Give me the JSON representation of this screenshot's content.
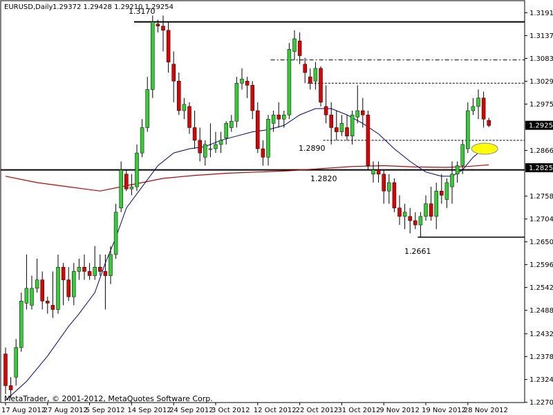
{
  "chart_data": {
    "type": "candlestick",
    "symbol_header": "EURUSD,Daily",
    "ohlc_header": "1.29372  1.29428  1.29210  1.29254",
    "footer": "MetaTrader, © 2001-2012, MetaQuotes Software Corp.",
    "ylim": [
      1.227,
      1.322
    ],
    "y_ticks": [
      "1.31915",
      "1.31375",
      "1.30835",
      "1.30295",
      "1.29755",
      "1.29254",
      "1.28660",
      "1.28251",
      "1.27580",
      "1.27040",
      "1.26500",
      "1.25960",
      "1.25420",
      "1.24880",
      "1.24325",
      "1.23785",
      "1.23245",
      "1.22705"
    ],
    "x_ticks": [
      "17 Aug 2012",
      "27 Aug 2012",
      "5 Sep 2012",
      "14 Sep 2012",
      "24 Sep 2012",
      "3 Oct 2012",
      "12 Oct 2012",
      "22 Oct 2012",
      "31 Oct 2012",
      "9 Nov 2012",
      "19 Nov 2012",
      "28 Nov 2012"
    ],
    "current_price_tag": "1.29254",
    "support_price_tag": "1.28251",
    "annotations": [
      "1.3170",
      "1.2890",
      "1.2820",
      "1.2661"
    ],
    "bull_color": "#32cd32",
    "bear_color": "#e00000",
    "fast_ma_color": "#000080",
    "slow_ma_color": "#c00000",
    "highlight_color": "#ffff00",
    "candles": [
      [
        1.2385,
        1.24,
        1.229,
        1.231
      ],
      [
        1.231,
        1.233,
        1.228,
        1.23
      ],
      [
        1.233,
        1.242,
        1.231,
        1.24
      ],
      [
        1.24,
        1.253,
        1.239,
        1.251
      ],
      [
        1.2505,
        1.262,
        1.249,
        1.254
      ],
      [
        1.25,
        1.257,
        1.249,
        1.254
      ],
      [
        1.254,
        1.261,
        1.253,
        1.256
      ],
      [
        1.256,
        1.258,
        1.249,
        1.251
      ],
      [
        1.251,
        1.252,
        1.248,
        1.2505
      ],
      [
        1.25,
        1.258,
        1.247,
        1.249
      ],
      [
        1.249,
        1.262,
        1.248,
        1.259
      ],
      [
        1.259,
        1.26,
        1.25,
        1.256
      ],
      [
        1.256,
        1.259,
        1.251,
        1.252
      ],
      [
        1.252,
        1.26,
        1.25,
        1.258
      ],
      [
        1.258,
        1.261,
        1.256,
        1.259
      ],
      [
        1.259,
        1.262,
        1.256,
        1.258
      ],
      [
        1.258,
        1.26,
        1.256,
        1.257
      ],
      [
        1.257,
        1.264,
        1.256,
        1.259
      ],
      [
        1.259,
        1.262,
        1.257,
        1.258
      ],
      [
        1.258,
        1.262,
        1.249,
        1.257
      ],
      [
        1.257,
        1.264,
        1.255,
        1.262
      ],
      [
        1.262,
        1.274,
        1.261,
        1.272
      ],
      [
        1.273,
        1.284,
        1.272,
        1.282
      ],
      [
        1.281,
        1.282,
        1.277,
        1.2775
      ],
      [
        1.2775,
        1.281,
        1.276,
        1.278
      ],
      [
        1.278,
        1.288,
        1.277,
        1.286
      ],
      [
        1.286,
        1.294,
        1.285,
        1.292
      ],
      [
        1.292,
        1.304,
        1.291,
        1.301
      ],
      [
        1.301,
        1.3185,
        1.299,
        1.317
      ],
      [
        1.3165,
        1.3175,
        1.3145,
        1.316
      ],
      [
        1.316,
        1.3185,
        1.31,
        1.315
      ],
      [
        1.315,
        1.317,
        1.305,
        1.3075
      ],
      [
        1.307,
        1.31,
        1.298,
        1.303
      ],
      [
        1.303,
        1.305,
        1.295,
        1.296
      ],
      [
        1.296,
        1.299,
        1.294,
        1.2975
      ],
      [
        1.297,
        1.298,
        1.2905,
        1.292
      ],
      [
        1.292,
        1.296,
        1.287,
        1.289
      ],
      [
        1.289,
        1.292,
        1.284,
        1.286
      ],
      [
        1.285,
        1.289,
        1.283,
        1.288
      ],
      [
        1.287,
        1.293,
        1.285,
        1.287
      ],
      [
        1.287,
        1.291,
        1.286,
        1.288
      ],
      [
        1.288,
        1.291,
        1.286,
        1.289
      ],
      [
        1.2895,
        1.2935,
        1.288,
        1.293
      ],
      [
        1.292,
        1.295,
        1.291,
        1.2935
      ],
      [
        1.2935,
        1.304,
        1.292,
        1.3025
      ],
      [
        1.3025,
        1.306,
        1.301,
        1.3035
      ],
      [
        1.303,
        1.304,
        1.299,
        1.302
      ],
      [
        1.302,
        1.303,
        1.294,
        1.296
      ],
      [
        1.296,
        1.298,
        1.286,
        1.287
      ],
      [
        1.287,
        1.289,
        1.283,
        1.285
      ],
      [
        1.285,
        1.295,
        1.283,
        1.294
      ],
      [
        1.293,
        1.296,
        1.291,
        1.295
      ],
      [
        1.295,
        1.298,
        1.292,
        1.294
      ],
      [
        1.294,
        1.296,
        1.292,
        1.295
      ],
      [
        1.295,
        1.312,
        1.294,
        1.3105
      ],
      [
        1.31,
        1.315,
        1.308,
        1.313
      ],
      [
        1.3125,
        1.3145,
        1.307,
        1.309
      ],
      [
        1.307,
        1.3085,
        1.3025,
        1.305
      ],
      [
        1.304,
        1.306,
        1.301,
        1.3025
      ],
      [
        1.303,
        1.3075,
        1.301,
        1.306
      ],
      [
        1.306,
        1.3065,
        1.297,
        1.298
      ],
      [
        1.297,
        1.302,
        1.293,
        1.295
      ],
      [
        1.295,
        1.298,
        1.288,
        1.292
      ],
      [
        1.292,
        1.296,
        1.289,
        1.291
      ],
      [
        1.291,
        1.295,
        1.29,
        1.293
      ],
      [
        1.292,
        1.295,
        1.289,
        1.29
      ],
      [
        1.29,
        1.296,
        1.288,
        1.295
      ],
      [
        1.2945,
        1.302,
        1.293,
        1.296
      ],
      [
        1.296,
        1.299,
        1.292,
        1.295
      ],
      [
        1.295,
        1.296,
        1.282,
        1.283
      ],
      [
        1.281,
        1.284,
        1.279,
        1.282
      ],
      [
        1.282,
        1.284,
        1.279,
        1.281
      ],
      [
        1.281,
        1.282,
        1.274,
        1.277
      ],
      [
        1.277,
        1.281,
        1.274,
        1.279
      ],
      [
        1.279,
        1.28,
        1.272,
        1.273
      ],
      [
        1.273,
        1.276,
        1.269,
        1.271
      ],
      [
        1.271,
        1.274,
        1.268,
        1.272
      ],
      [
        1.271,
        1.273,
        1.267,
        1.27
      ],
      [
        1.27,
        1.272,
        1.268,
        1.269
      ],
      [
        1.269,
        1.272,
        1.266,
        1.271
      ],
      [
        1.271,
        1.276,
        1.27,
        1.274
      ],
      [
        1.274,
        1.278,
        1.27,
        1.271
      ],
      [
        1.271,
        1.279,
        1.268,
        1.277
      ],
      [
        1.277,
        1.281,
        1.274,
        1.276
      ],
      [
        1.275,
        1.28,
        1.273,
        1.279
      ],
      [
        1.278,
        1.284,
        1.274,
        1.281
      ],
      [
        1.281,
        1.284,
        1.279,
        1.283
      ],
      [
        1.283,
        1.289,
        1.281,
        1.288
      ],
      [
        1.287,
        1.298,
        1.286,
        1.296
      ],
      [
        1.296,
        1.299,
        1.295,
        1.297
      ],
      [
        1.297,
        1.301,
        1.294,
        1.299
      ],
      [
        1.299,
        1.3005,
        1.292,
        1.294
      ],
      [
        1.2937,
        1.2943,
        1.2921,
        1.2925
      ]
    ],
    "ma_fast": [
      [
        0,
        1.2275
      ],
      [
        4,
        1.232
      ],
      [
        8,
        1.238
      ],
      [
        12,
        1.245
      ],
      [
        14,
        1.248
      ],
      [
        17,
        1.253
      ],
      [
        19,
        1.26
      ],
      [
        21,
        1.266
      ],
      [
        23,
        1.273
      ],
      [
        26,
        1.278
      ],
      [
        29,
        1.283
      ],
      [
        32,
        1.286
      ],
      [
        35,
        1.287
      ],
      [
        38,
        1.2875
      ],
      [
        41,
        1.289
      ],
      [
        44,
        1.29
      ],
      [
        47,
        1.291
      ],
      [
        50,
        1.2915
      ],
      [
        53,
        1.2925
      ],
      [
        56,
        1.295
      ],
      [
        59,
        1.2965
      ],
      [
        62,
        1.2965
      ],
      [
        65,
        1.295
      ],
      [
        68,
        1.293
      ],
      [
        71,
        1.2905
      ],
      [
        74,
        1.287
      ],
      [
        77,
        1.284
      ],
      [
        80,
        1.2815
      ],
      [
        83,
        1.2805
      ],
      [
        85,
        1.2805
      ],
      [
        87,
        1.282
      ],
      [
        89,
        1.285
      ],
      [
        91,
        1.287
      ],
      [
        92,
        1.288
      ]
    ],
    "ma_slow": [
      [
        0,
        1.2805
      ],
      [
        6,
        1.279
      ],
      [
        12,
        1.278
      ],
      [
        18,
        1.277
      ],
      [
        24,
        1.2785
      ],
      [
        30,
        1.28
      ],
      [
        36,
        1.2807
      ],
      [
        42,
        1.2812
      ],
      [
        48,
        1.2815
      ],
      [
        54,
        1.2818
      ],
      [
        60,
        1.2823
      ],
      [
        66,
        1.2828
      ],
      [
        72,
        1.283
      ],
      [
        78,
        1.2827
      ],
      [
        84,
        1.2826
      ],
      [
        88,
        1.2828
      ],
      [
        92,
        1.2832
      ]
    ],
    "hlines": [
      {
        "name": "resistance-1-3170",
        "price": 1.317,
        "from": 25,
        "to": 92,
        "style": "solid",
        "width": 2
      },
      {
        "name": "level-1-3080",
        "price": 1.308,
        "from": 51,
        "to": 92,
        "style": "dashdot",
        "width": 1
      },
      {
        "name": "level-1-3025",
        "price": 1.3025,
        "from": 58,
        "to": 92,
        "style": "dash",
        "width": 1
      },
      {
        "name": "level-1-2890",
        "price": 1.289,
        "from": 61,
        "to": 92,
        "style": "dash",
        "width": 1
      },
      {
        "name": "support-1-2820",
        "price": 1.282,
        "from": 0,
        "to": 92,
        "style": "solid",
        "width": 2
      },
      {
        "name": "low-1-2661",
        "price": 1.2661,
        "from": 79,
        "to": 92,
        "style": "solid",
        "width": 1.5
      }
    ]
  }
}
